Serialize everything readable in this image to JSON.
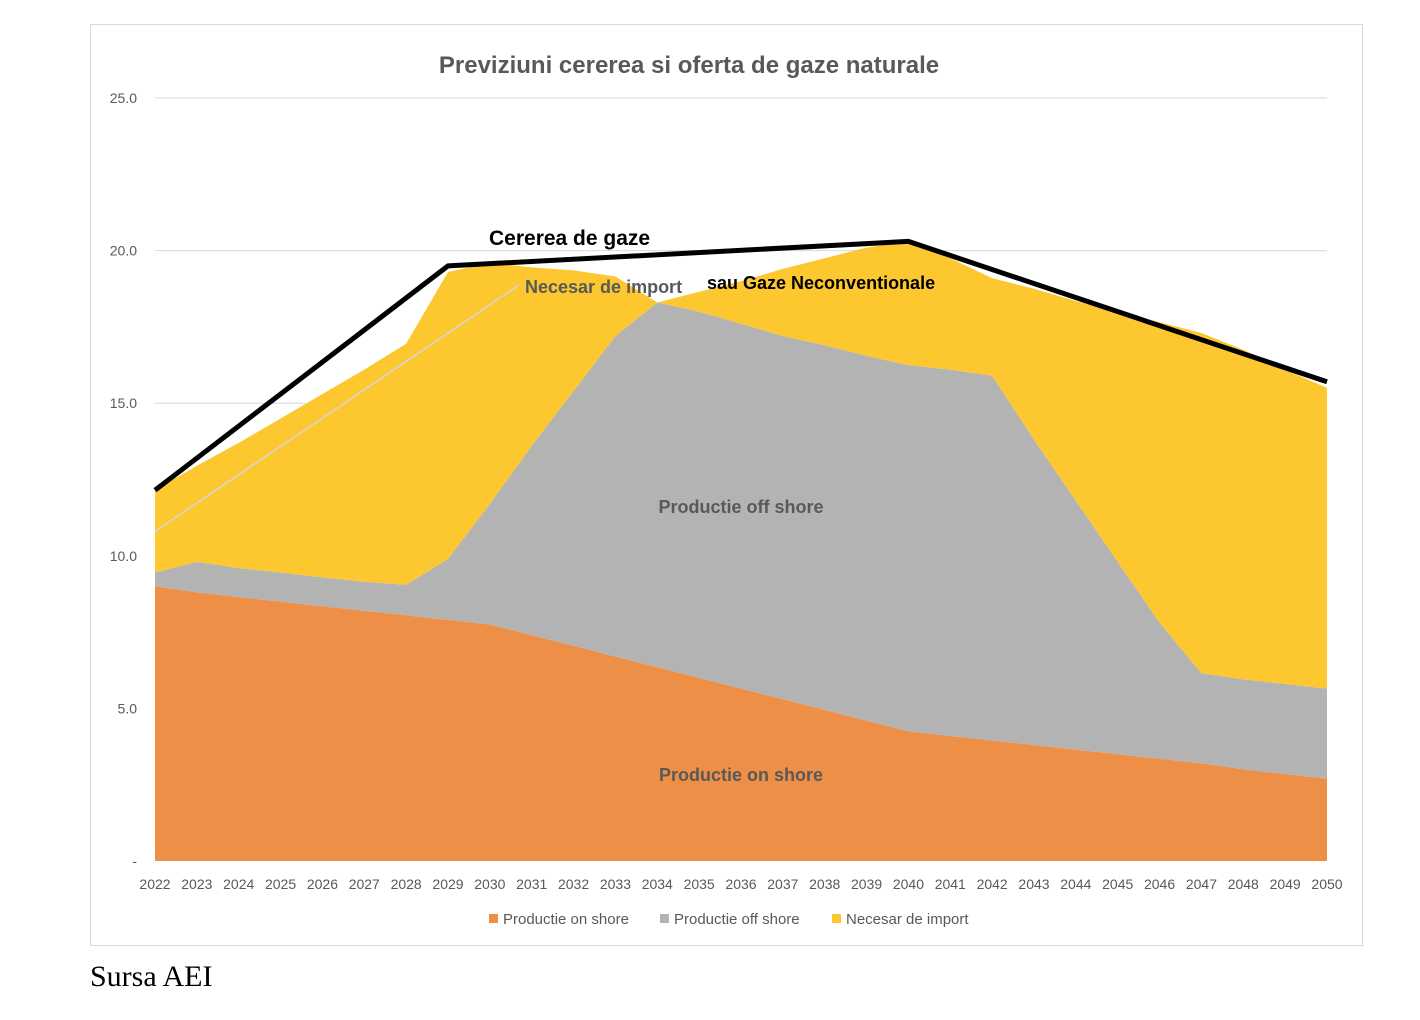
{
  "chart_data": {
    "type": "area",
    "title": "Previziuni cererea si oferta de gaze naturale",
    "categories": [
      "2022",
      "2023",
      "2024",
      "2025",
      "2026",
      "2027",
      "2028",
      "2029",
      "2030",
      "2031",
      "2032",
      "2033",
      "2034",
      "2035",
      "2036",
      "2037",
      "2038",
      "2039",
      "2040",
      "2041",
      "2042",
      "2043",
      "2044",
      "2045",
      "2046",
      "2047",
      "2048",
      "2049",
      "2050"
    ],
    "y_ticks": [
      "-",
      "5.0",
      "10.0",
      "15.0",
      "20.0",
      "25.0"
    ],
    "ylim": [
      0,
      25
    ],
    "stacked": true,
    "series": [
      {
        "name": "Productie on shore",
        "color": "#ED8F47",
        "values": [
          9.0,
          8.8,
          8.65,
          8.5,
          8.35,
          8.2,
          8.05,
          7.9,
          7.75,
          7.4,
          7.05,
          6.7,
          6.35,
          6.0,
          5.65,
          5.3,
          4.95,
          4.6,
          4.25,
          4.1,
          3.95,
          3.8,
          3.65,
          3.5,
          3.35,
          3.2,
          3.0,
          2.85,
          2.7
        ]
      },
      {
        "name": "Productie off shore",
        "color": "#B3B3B3",
        "values": [
          0.45,
          1.0,
          0.95,
          0.95,
          0.95,
          0.95,
          1.0,
          2.0,
          3.95,
          6.2,
          8.35,
          10.5,
          11.95,
          12.0,
          11.95,
          11.9,
          11.95,
          11.95,
          12.0,
          12.0,
          11.95,
          10.0,
          8.15,
          6.3,
          4.45,
          2.95,
          2.95,
          2.95,
          2.95
        ]
      },
      {
        "name": "Necesar de import",
        "color": "#FCC72F",
        "values": [
          2.7,
          3.15,
          4.1,
          5.05,
          6.0,
          6.95,
          7.9,
          9.4,
          7.9,
          5.85,
          3.95,
          1.95,
          0.0,
          0.65,
          1.4,
          2.2,
          2.85,
          3.55,
          4.05,
          3.65,
          3.2,
          4.95,
          6.55,
          8.2,
          9.85,
          11.15,
          10.8,
          10.3,
          9.85
        ]
      }
    ],
    "demand_line": {
      "name": "Cererea de gaze",
      "color": "#000000",
      "points": [
        [
          "2022",
          12.15
        ],
        [
          "2029",
          19.5
        ],
        [
          "2040",
          20.3
        ],
        [
          "2050",
          15.7
        ]
      ]
    },
    "annotations": {
      "demand": "Cererea de gaze",
      "import_label_part1": "Necesar de import",
      "import_label_part2": "sau Gaze Neconventionale",
      "offshore": "Productie off shore",
      "onshore": "Productie on shore"
    },
    "legend": {
      "position": "bottom",
      "items": [
        {
          "label": "Productie on shore",
          "color": "#ED8F47"
        },
        {
          "label": "Productie off shore",
          "color": "#B3B3B3"
        },
        {
          "label": "Necesar de import",
          "color": "#FCC72F"
        }
      ]
    },
    "grid": true
  },
  "source_note": "Sursa AEI"
}
